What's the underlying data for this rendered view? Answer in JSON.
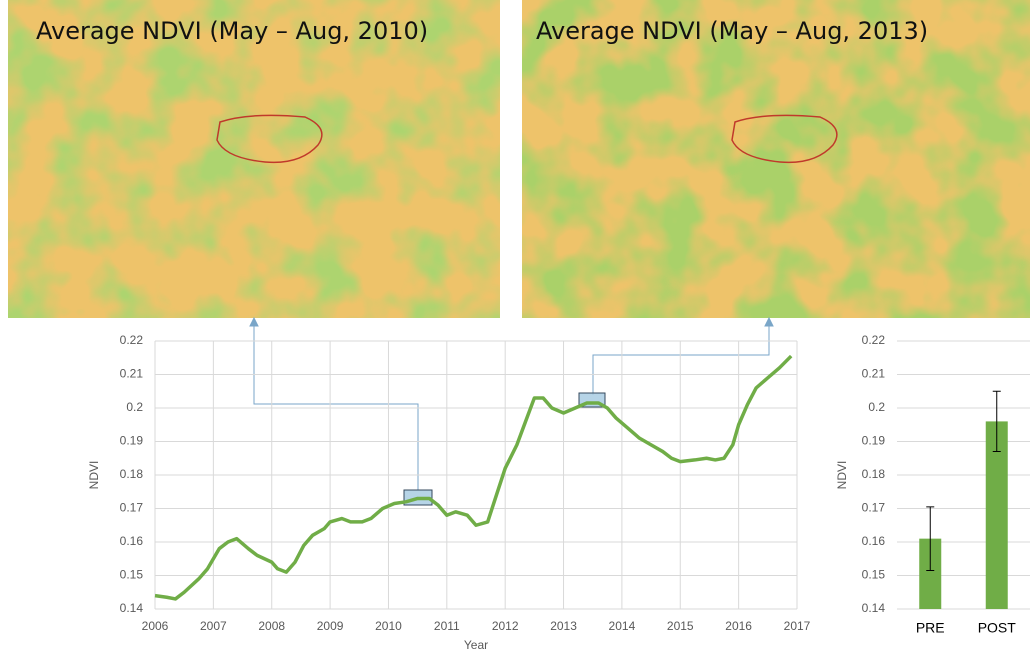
{
  "images": [
    {
      "title": "Average NDVI (May – Aug, 2010)"
    },
    {
      "title": "Average NDVI (May – Aug, 2013)"
    }
  ],
  "chart_data": [
    {
      "type": "line",
      "x_label": "Year",
      "y_label": "NDVI",
      "xlim": [
        2006,
        2017
      ],
      "xticks": [
        2006,
        2007,
        2008,
        2009,
        2010,
        2011,
        2012,
        2013,
        2014,
        2015,
        2016,
        2017
      ],
      "ylim": [
        0.14,
        0.22
      ],
      "yticks": [
        0.14,
        0.15,
        0.16,
        0.17,
        0.18,
        0.19,
        0.2,
        0.21,
        0.22
      ],
      "grid": true,
      "series": [
        {
          "color": "#70ad47",
          "x": [
            2006.0,
            2006.2,
            2006.35,
            2006.5,
            2006.75,
            2006.9,
            2007.1,
            2007.25,
            2007.4,
            2007.6,
            2007.75,
            2008.0,
            2008.1,
            2008.25,
            2008.4,
            2008.55,
            2008.7,
            2008.9,
            2009.0,
            2009.2,
            2009.35,
            2009.55,
            2009.7,
            2009.9,
            2010.1,
            2010.3,
            2010.5,
            2010.7,
            2010.85,
            2011.0,
            2011.15,
            2011.35,
            2011.5,
            2011.7,
            2011.85,
            2012.0,
            2012.2,
            2012.35,
            2012.5,
            2012.65,
            2012.8,
            2013.0,
            2013.2,
            2013.4,
            2013.6,
            2013.75,
            2013.9,
            2014.1,
            2014.3,
            2014.5,
            2014.7,
            2014.85,
            2015.0,
            2015.25,
            2015.45,
            2015.6,
            2015.75,
            2015.9,
            2016.0,
            2016.15,
            2016.3,
            2016.5,
            2016.7,
            2016.9
          ],
          "values": [
            0.144,
            0.1435,
            0.143,
            0.145,
            0.149,
            0.152,
            0.158,
            0.16,
            0.161,
            0.158,
            0.156,
            0.154,
            0.152,
            0.151,
            0.154,
            0.159,
            0.162,
            0.164,
            0.166,
            0.167,
            0.166,
            0.166,
            0.167,
            0.17,
            0.1715,
            0.172,
            0.173,
            0.173,
            0.171,
            0.168,
            0.169,
            0.168,
            0.165,
            0.166,
            0.174,
            0.182,
            0.189,
            0.196,
            0.203,
            0.203,
            0.2,
            0.1985,
            0.2,
            0.2015,
            0.2015,
            0.2,
            0.197,
            0.194,
            0.191,
            0.189,
            0.187,
            0.185,
            0.184,
            0.1845,
            0.185,
            0.1845,
            0.185,
            0.189,
            0.195,
            0.201,
            0.206,
            0.209,
            0.212,
            0.2155
          ]
        }
      ]
    },
    {
      "type": "bar",
      "y_label": "NDVI",
      "categories": [
        "PRE",
        "POST"
      ],
      "values": [
        0.161,
        0.196
      ],
      "errors": [
        0.0095,
        0.009
      ],
      "color": "#70ad47",
      "ylim": [
        0.14,
        0.22
      ],
      "yticks": [
        0.14,
        0.15,
        0.16,
        0.17,
        0.18,
        0.19,
        0.2,
        0.21,
        0.22
      ],
      "grid": true
    }
  ]
}
